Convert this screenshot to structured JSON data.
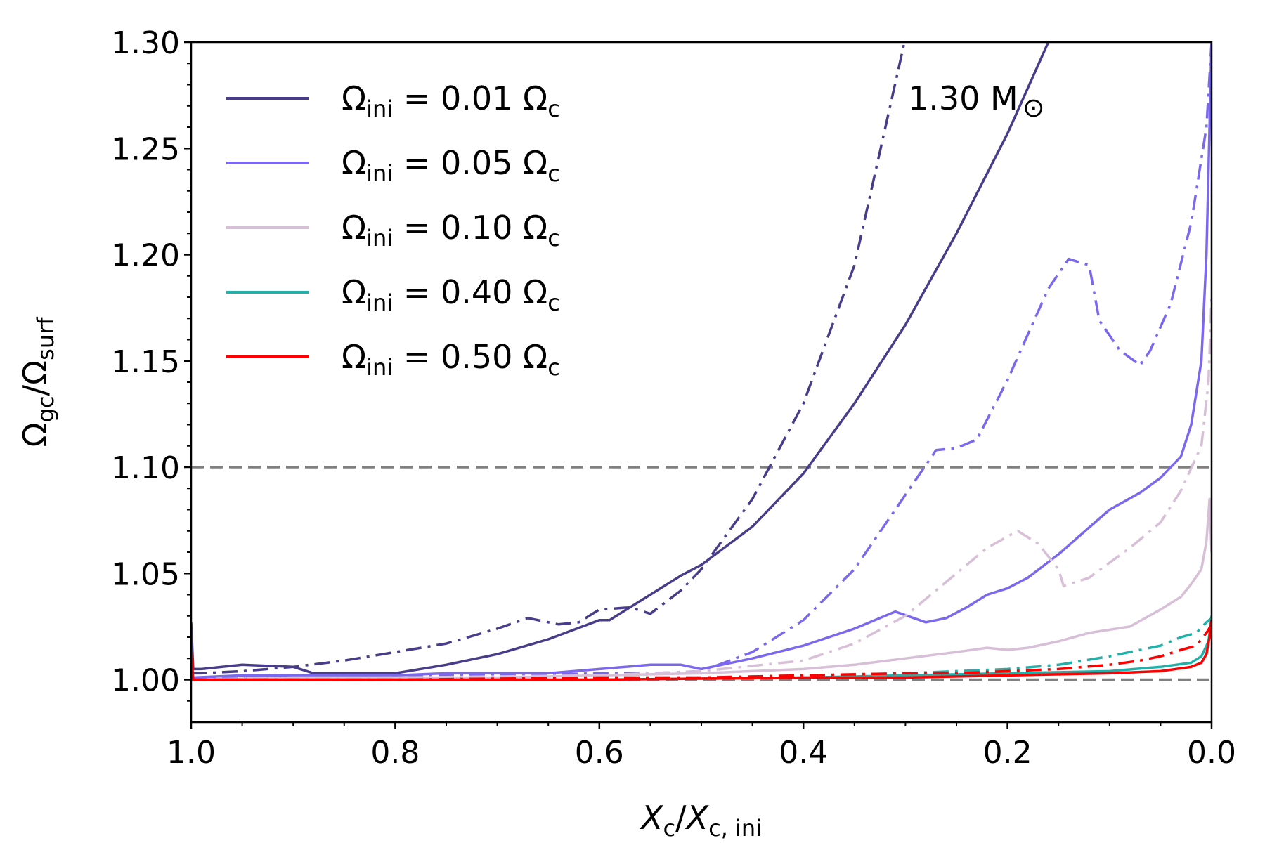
{
  "chart_data": {
    "type": "line",
    "xlabel": {
      "main": "X",
      "sub": "c",
      "sep": "/",
      "main2": "X",
      "sub2": "c, ini"
    },
    "ylabel": {
      "main": "Ω",
      "sub": "gc",
      "sep": "/",
      "main2": "Ω",
      "sub2": "surf"
    },
    "xlim": [
      1.0,
      0.0
    ],
    "ylim": [
      0.98,
      1.3
    ],
    "x_ticks": [
      1.0,
      0.8,
      0.6,
      0.4,
      0.2,
      0.0
    ],
    "x_tick_labels": [
      "1.0",
      "0.8",
      "0.6",
      "0.4",
      "0.2",
      "0.0"
    ],
    "y_ticks": [
      1.0,
      1.05,
      1.1,
      1.15,
      1.2,
      1.25,
      1.3
    ],
    "y_tick_labels": [
      "1.00",
      "1.05",
      "1.10",
      "1.15",
      "1.20",
      "1.25",
      "1.30"
    ],
    "annotation": {
      "text": "1.30 M",
      "symbol": "⊙"
    },
    "reference_lines": [
      {
        "y": 1.1,
        "color": "#808080",
        "style": "dashed"
      },
      {
        "y": 1.0,
        "color": "#808080",
        "style": "dashed"
      }
    ],
    "legend": [
      {
        "pre": "Ω",
        "sub": "ini",
        "rest": " = 0.01 Ω",
        "sub2": "c",
        "color": "#483d8b"
      },
      {
        "pre": "Ω",
        "sub": "ini",
        "rest": " = 0.05 Ω",
        "sub2": "c",
        "color": "#7b68ee"
      },
      {
        "pre": "Ω",
        "sub": "ini",
        "rest": " = 0.10 Ω",
        "sub2": "c",
        "color": "#d8bfd8"
      },
      {
        "pre": "Ω",
        "sub": "ini",
        "rest": " = 0.40 Ω",
        "sub2": "c",
        "color": "#20b2aa"
      },
      {
        "pre": "Ω",
        "sub": "ini",
        "rest": " = 0.50 Ω",
        "sub2": "c",
        "color": "#ff0000"
      }
    ],
    "series": [
      {
        "name": "Ω_ini = 0.01 Ω_c (solid)",
        "color": "#483d8b",
        "style": "solid",
        "x": [
          1.0,
          0.998,
          0.99,
          0.95,
          0.9,
          0.88,
          0.8,
          0.75,
          0.7,
          0.65,
          0.6,
          0.59,
          0.55,
          0.52,
          0.5,
          0.45,
          0.4,
          0.35,
          0.3,
          0.25,
          0.2,
          0.16
        ],
        "y": [
          1.027,
          1.005,
          1.005,
          1.007,
          1.006,
          1.003,
          1.003,
          1.007,
          1.012,
          1.019,
          1.028,
          1.028,
          1.04,
          1.049,
          1.054,
          1.072,
          1.097,
          1.13,
          1.167,
          1.21,
          1.257,
          1.3
        ]
      },
      {
        "name": "Ω_ini = 0.01 Ω_c (dash-dot)",
        "color": "#483d8b",
        "style": "dashdot",
        "x": [
          1.0,
          0.99,
          0.95,
          0.9,
          0.85,
          0.8,
          0.75,
          0.7,
          0.67,
          0.64,
          0.62,
          0.6,
          0.57,
          0.55,
          0.52,
          0.5,
          0.45,
          0.4,
          0.35,
          0.3
        ],
        "y": [
          1.003,
          1.003,
          1.004,
          1.006,
          1.009,
          1.013,
          1.017,
          1.024,
          1.029,
          1.026,
          1.027,
          1.033,
          1.034,
          1.031,
          1.042,
          1.052,
          1.085,
          1.13,
          1.195,
          1.302
        ]
      },
      {
        "name": "Ω_ini = 0.05 Ω_c (solid)",
        "color": "#7b68ee",
        "style": "solid",
        "x": [
          1.0,
          0.95,
          0.9,
          0.85,
          0.8,
          0.75,
          0.7,
          0.65,
          0.6,
          0.55,
          0.52,
          0.5,
          0.45,
          0.4,
          0.35,
          0.31,
          0.28,
          0.26,
          0.24,
          0.22,
          0.2,
          0.18,
          0.15,
          0.1,
          0.07,
          0.05,
          0.03,
          0.02,
          0.01,
          0.005,
          0.002,
          0.0
        ],
        "y": [
          1.001,
          1.002,
          1.002,
          1.002,
          1.002,
          1.003,
          1.003,
          1.003,
          1.005,
          1.007,
          1.007,
          1.005,
          1.01,
          1.016,
          1.024,
          1.032,
          1.027,
          1.029,
          1.034,
          1.04,
          1.043,
          1.048,
          1.059,
          1.08,
          1.088,
          1.095,
          1.105,
          1.12,
          1.15,
          1.2,
          1.26,
          1.3
        ]
      },
      {
        "name": "Ω_ini = 0.05 Ω_c (dash-dot)",
        "color": "#7b68ee",
        "style": "dashdot",
        "x": [
          1.0,
          0.9,
          0.8,
          0.7,
          0.6,
          0.55,
          0.5,
          0.45,
          0.4,
          0.35,
          0.3,
          0.27,
          0.25,
          0.23,
          0.2,
          0.16,
          0.14,
          0.12,
          0.11,
          0.09,
          0.07,
          0.06,
          0.04,
          0.02,
          0.005,
          0.0
        ],
        "y": [
          1.001,
          1.001,
          1.002,
          1.002,
          1.003,
          1.003,
          1.004,
          1.013,
          1.028,
          1.052,
          1.087,
          1.108,
          1.109,
          1.113,
          1.141,
          1.184,
          1.198,
          1.195,
          1.169,
          1.155,
          1.148,
          1.155,
          1.177,
          1.215,
          1.26,
          1.3
        ]
      },
      {
        "name": "Ω_ini = 0.10 Ω_c (solid)",
        "color": "#d8bfd8",
        "style": "solid",
        "x": [
          1.0,
          0.9,
          0.8,
          0.7,
          0.6,
          0.5,
          0.4,
          0.35,
          0.3,
          0.25,
          0.22,
          0.2,
          0.18,
          0.15,
          0.12,
          0.08,
          0.05,
          0.03,
          0.02,
          0.01,
          0.005,
          0.002,
          0.0
        ],
        "y": [
          1.0,
          1.001,
          1.001,
          1.001,
          1.002,
          1.003,
          1.005,
          1.007,
          1.01,
          1.013,
          1.015,
          1.014,
          1.015,
          1.018,
          1.022,
          1.025,
          1.033,
          1.039,
          1.045,
          1.052,
          1.065,
          1.085,
          1.06
        ]
      },
      {
        "name": "Ω_ini = 0.10 Ω_c (dashed)",
        "color": "#d8bfd8",
        "style": "dashdot",
        "x": [
          1.0,
          0.8,
          0.6,
          0.5,
          0.4,
          0.35,
          0.3,
          0.25,
          0.22,
          0.19,
          0.17,
          0.15,
          0.145,
          0.12,
          0.1,
          0.08,
          0.05,
          0.03,
          0.01,
          0.003,
          0.0
        ],
        "y": [
          1.0,
          1.001,
          1.002,
          1.004,
          1.009,
          1.017,
          1.03,
          1.05,
          1.062,
          1.07,
          1.064,
          1.052,
          1.044,
          1.048,
          1.055,
          1.062,
          1.074,
          1.089,
          1.11,
          1.14,
          1.18
        ]
      },
      {
        "name": "Ω_ini = 0.40 Ω_c (solid)",
        "color": "#20b2aa",
        "style": "solid",
        "x": [
          1.0,
          0.8,
          0.6,
          0.4,
          0.3,
          0.2,
          0.1,
          0.05,
          0.02,
          0.01,
          0.003,
          0.0
        ],
        "y": [
          1.0,
          1.0,
          1.0,
          1.001,
          1.002,
          1.003,
          1.004,
          1.006,
          1.008,
          1.011,
          1.018,
          1.03
        ]
      },
      {
        "name": "Ω_ini = 0.40 Ω_c (dash-dot)",
        "color": "#20b2aa",
        "style": "dashdot",
        "x": [
          1.0,
          0.8,
          0.6,
          0.5,
          0.4,
          0.3,
          0.25,
          0.2,
          0.15,
          0.1,
          0.07,
          0.05,
          0.03,
          0.015,
          0.005,
          0.0
        ],
        "y": [
          1.0,
          1.0,
          1.001,
          1.001,
          1.002,
          1.003,
          1.004,
          1.005,
          1.007,
          1.011,
          1.014,
          1.016,
          1.02,
          1.022,
          1.027,
          1.029
        ]
      },
      {
        "name": "Ω_ini = 0.50 Ω_c (solid)",
        "color": "#ff0000",
        "style": "solid",
        "x": [
          1.0,
          0.998,
          0.99,
          0.8,
          0.6,
          0.4,
          0.3,
          0.2,
          0.1,
          0.05,
          0.02,
          0.01,
          0.005,
          0.002,
          0.0
        ],
        "y": [
          1.015,
          1.0,
          1.0,
          1.0,
          1.0,
          1.001,
          1.001,
          1.002,
          1.003,
          1.004,
          1.006,
          1.008,
          1.012,
          1.02,
          1.028
        ]
      },
      {
        "name": "Ω_ini = 0.50 Ω_c (dash-dot)",
        "color": "#ff0000",
        "style": "dashdot",
        "x": [
          1.0,
          0.8,
          0.6,
          0.5,
          0.4,
          0.3,
          0.25,
          0.2,
          0.15,
          0.1,
          0.07,
          0.05,
          0.03,
          0.015,
          0.005,
          0.0
        ],
        "y": [
          1.0,
          1.0,
          1.001,
          1.001,
          1.002,
          1.003,
          1.003,
          1.004,
          1.005,
          1.007,
          1.009,
          1.011,
          1.014,
          1.016,
          1.022,
          1.026
        ]
      }
    ]
  }
}
